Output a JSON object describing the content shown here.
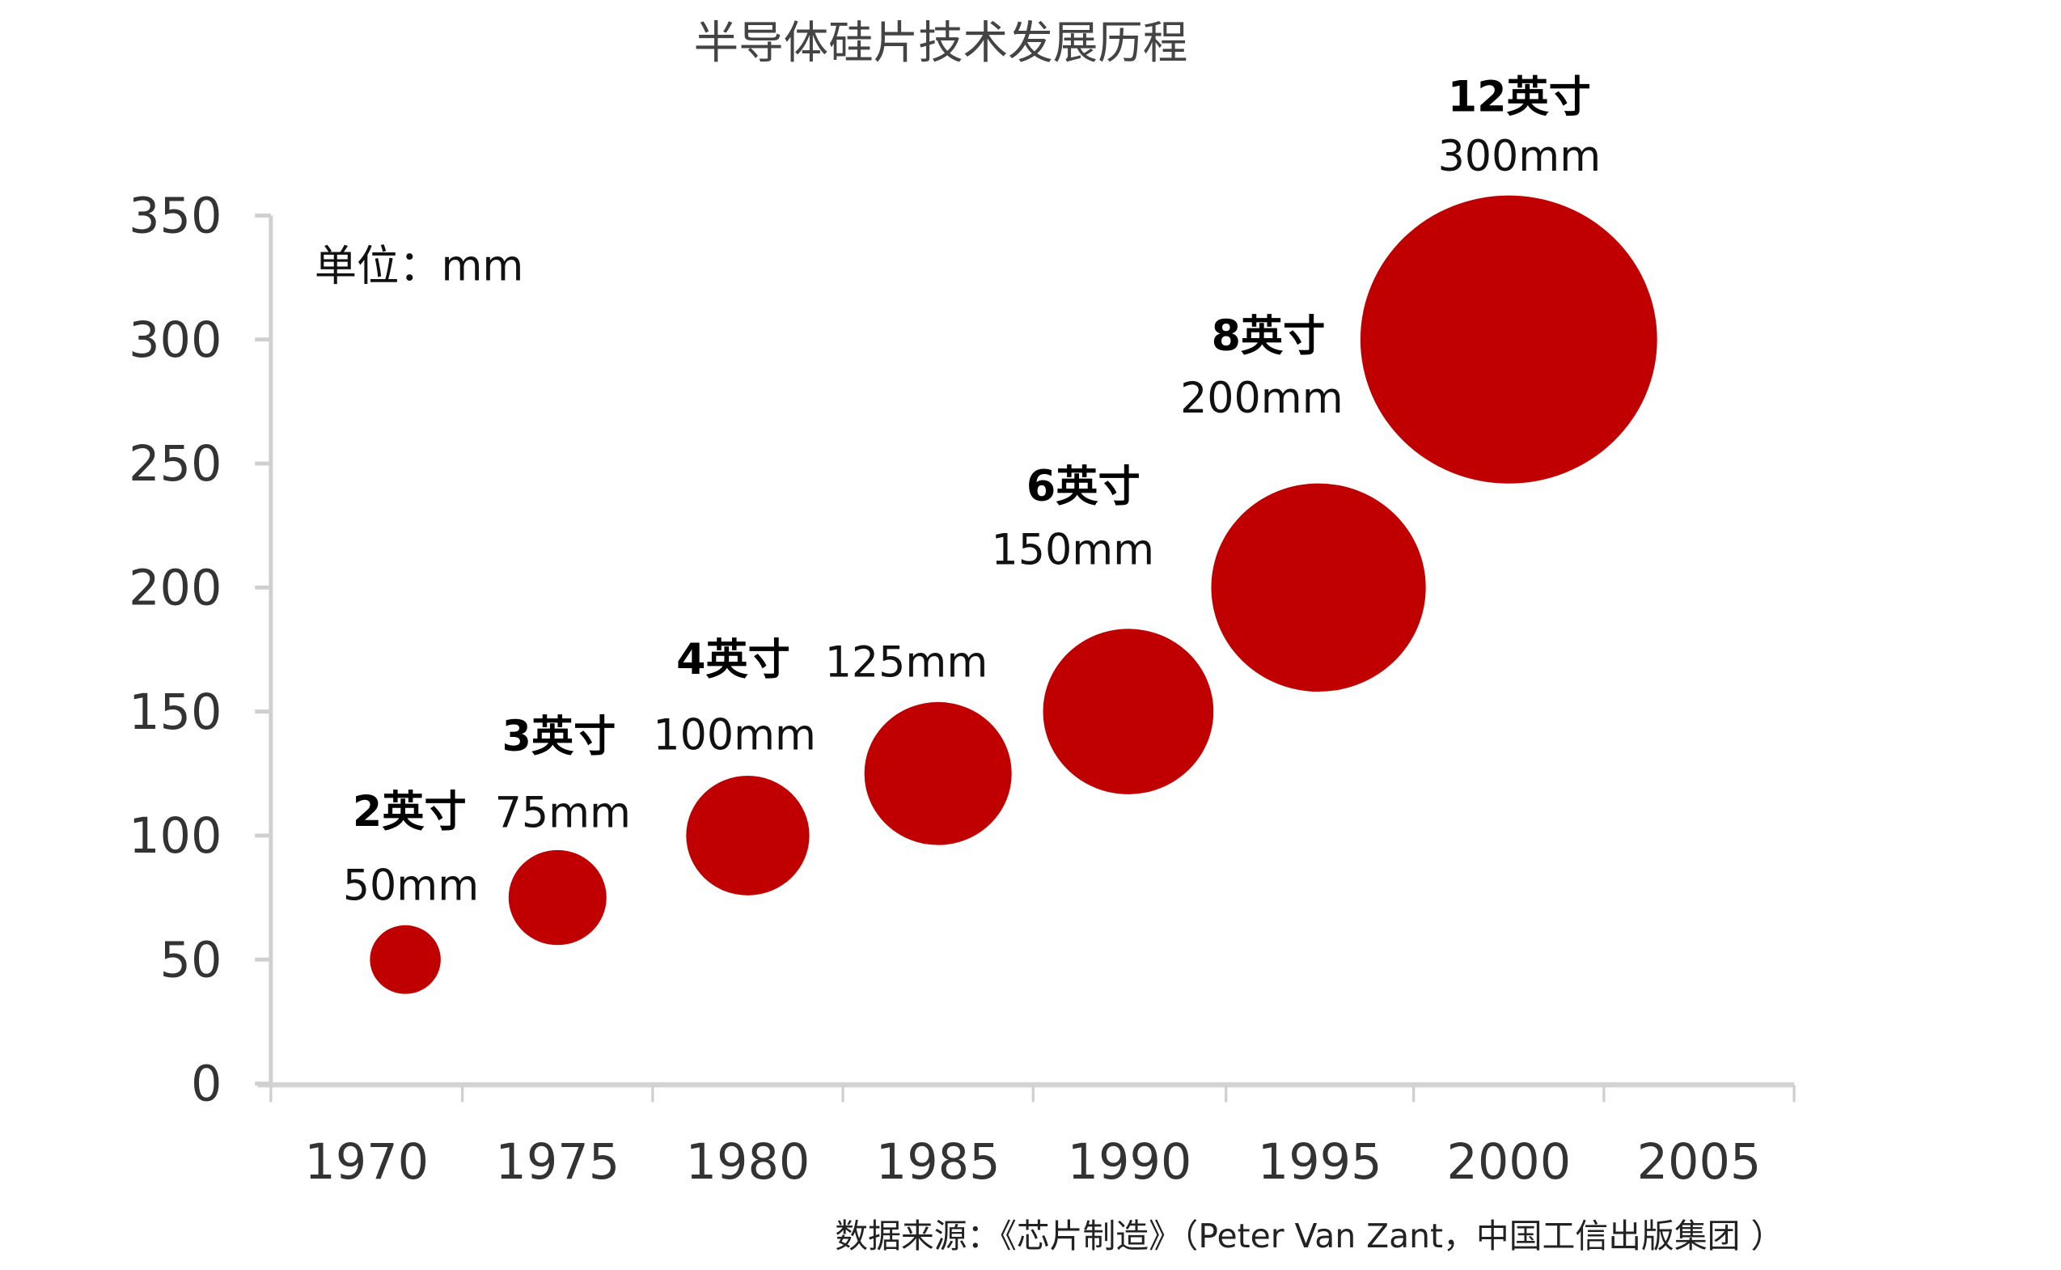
{
  "chart_data": {
    "type": "scatter",
    "subtype": "bubble",
    "title": "半导体硅片技术发展历程",
    "unit_note": "单位：mm",
    "source": "数据来源：《芯片制造》（Peter Van Zant，中国工信出版集团 ）",
    "xlabel": "",
    "ylabel": "",
    "x_ticks": [
      "1970",
      "1975",
      "1980",
      "1985",
      "1990",
      "1995",
      "2000",
      "2005"
    ],
    "y_ticks": [
      "0",
      "50",
      "100",
      "150",
      "200",
      "250",
      "300",
      "350"
    ],
    "ylim": [
      0,
      350
    ],
    "xlim": [
      1967.5,
      2007.5
    ],
    "grid": false,
    "bubble_color": "#C00000",
    "points": [
      {
        "x": 1971,
        "y": 50,
        "size": 50,
        "inch_label": "2英寸",
        "mm_label": "50mm"
      },
      {
        "x": 1975,
        "y": 75,
        "size": 75,
        "inch_label": "3英寸",
        "mm_label": "75mm"
      },
      {
        "x": 1980,
        "y": 100,
        "size": 100,
        "inch_label": "4英寸",
        "mm_label": "100mm"
      },
      {
        "x": 1985,
        "y": 125,
        "size": 125,
        "inch_label": "",
        "mm_label": "125mm"
      },
      {
        "x": 1990,
        "y": 150,
        "size": 150,
        "inch_label": "6英寸",
        "mm_label": "150mm"
      },
      {
        "x": 1995,
        "y": 200,
        "size": 200,
        "inch_label": "8英寸",
        "mm_label": "200mm"
      },
      {
        "x": 2000,
        "y": 300,
        "size": 300,
        "inch_label": "12英寸",
        "mm_label": "300mm"
      }
    ]
  }
}
